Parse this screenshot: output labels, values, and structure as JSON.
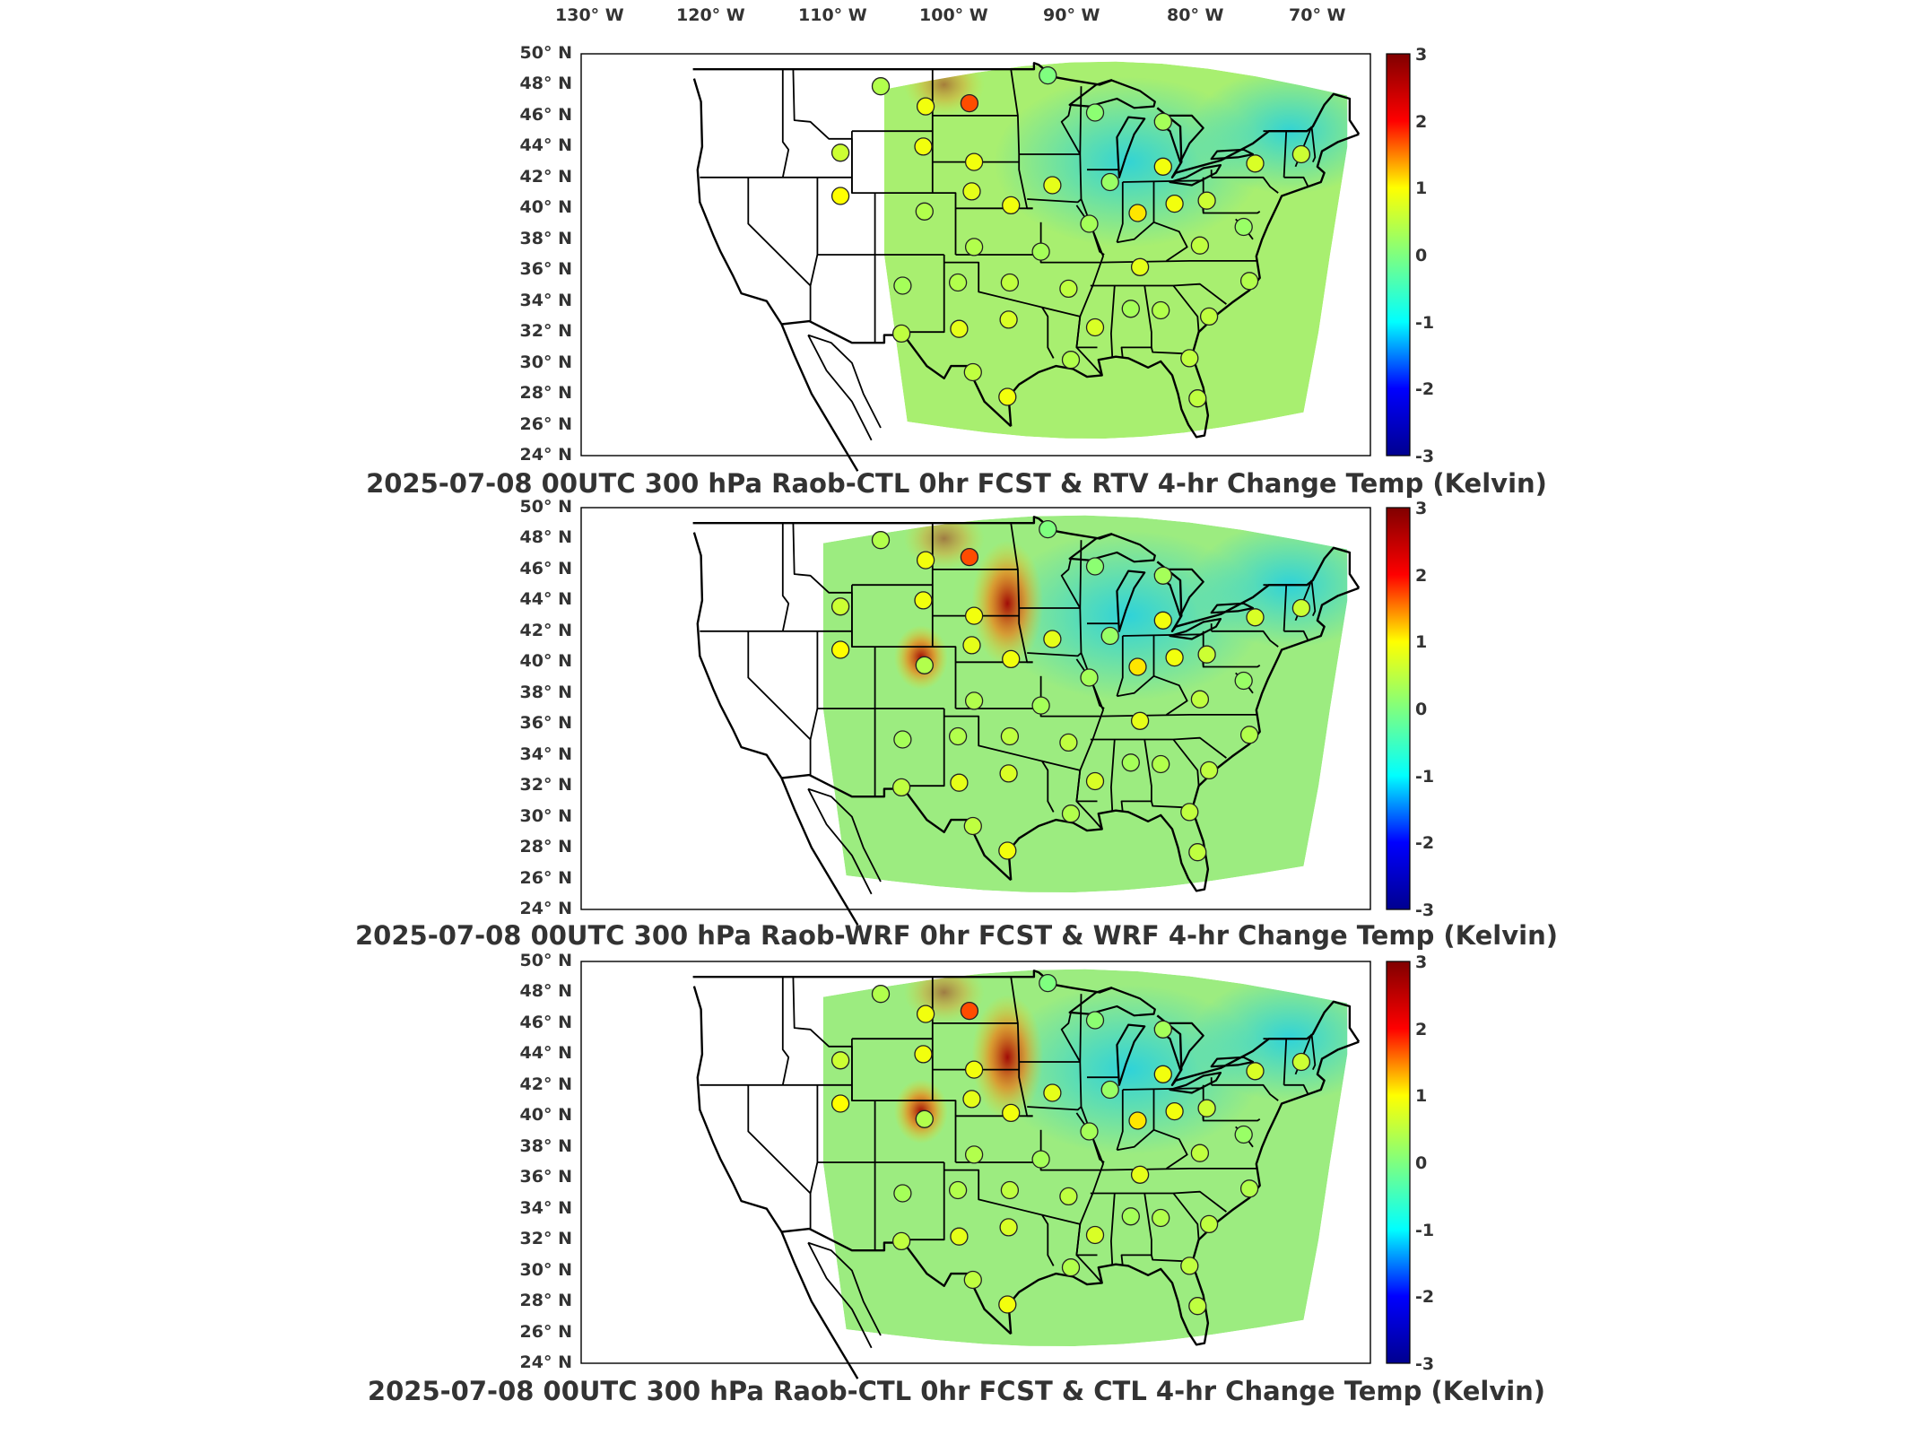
{
  "lon_labels": [
    "130° W",
    "120° W",
    "110° W",
    "100° W",
    "90° W",
    "80° W",
    "70° W"
  ],
  "lat_labels": [
    "50° N",
    "48° N",
    "46° N",
    "44° N",
    "42° N",
    "40° N",
    "38° N",
    "36° N",
    "34° N",
    "32° N",
    "30° N",
    "28° N",
    "26° N",
    "24° N"
  ],
  "colorbar": {
    "ticks": [
      "3",
      "2",
      "1",
      "0",
      "-1",
      "-2",
      "-3"
    ],
    "colormap": [
      "#00008f",
      "#0000ff",
      "#00ffff",
      "#7fff7f",
      "#ffff00",
      "#ff0000",
      "#800000"
    ],
    "range": [
      -3,
      3
    ]
  },
  "panels": [
    {
      "title": "2025-07-08 00UTC 300 hPa Raob-CTL 0hr FCST & RTV 4-hr Change Temp (Kelvin)",
      "field_color": "#a8ef70",
      "hotspots": []
    },
    {
      "title": "2025-07-08 00UTC 300 hPa Raob-WRF 0hr FCST & WRF 4-hr Change Temp (Kelvin)",
      "field_color": "#9cec80",
      "hotspots": [
        "north-plains",
        "colorado"
      ]
    },
    {
      "title": "2025-07-08 00UTC 300 hPa Raob-CTL 0hr FCST & CTL 4-hr Change Temp (Kelvin)",
      "field_color": "#9cec80",
      "hotspots": [
        "north-plains",
        "colorado"
      ]
    }
  ],
  "stations": [
    {
      "lon": -108.5,
      "lat": 47.9,
      "dT": 0.4
    },
    {
      "lon": -104.6,
      "lat": 46.6,
      "dT": 0.9
    },
    {
      "lon": -100.8,
      "lat": 46.8,
      "dT": 1.7
    },
    {
      "lon": -112.0,
      "lat": 43.6,
      "dT": 0.6
    },
    {
      "lon": -104.8,
      "lat": 44.0,
      "dT": 0.9
    },
    {
      "lon": -100.4,
      "lat": 43.0,
      "dT": 0.9
    },
    {
      "lon": -94.0,
      "lat": 48.6,
      "dT": 0.0
    },
    {
      "lon": -89.9,
      "lat": 46.2,
      "dT": 0.1
    },
    {
      "lon": -84.0,
      "lat": 45.6,
      "dT": 0.3
    },
    {
      "lon": -84.0,
      "lat": 42.7,
      "dT": 0.9
    },
    {
      "lon": -88.6,
      "lat": 41.7,
      "dT": 0.2
    },
    {
      "lon": -93.6,
      "lat": 41.5,
      "dT": 0.8
    },
    {
      "lon": -97.2,
      "lat": 40.2,
      "dT": 0.9
    },
    {
      "lon": -100.6,
      "lat": 41.1,
      "dT": 0.8
    },
    {
      "lon": -104.7,
      "lat": 39.8,
      "dT": 0.4
    },
    {
      "lon": -112.0,
      "lat": 40.8,
      "dT": 1.0
    },
    {
      "lon": -100.4,
      "lat": 37.5,
      "dT": 0.4
    },
    {
      "lon": -94.6,
      "lat": 37.2,
      "dT": 0.3
    },
    {
      "lon": -90.4,
      "lat": 39.0,
      "dT": 0.3
    },
    {
      "lon": -86.2,
      "lat": 39.7,
      "dT": 1.1
    },
    {
      "lon": -83.0,
      "lat": 40.3,
      "dT": 0.9
    },
    {
      "lon": -80.2,
      "lat": 40.5,
      "dT": 0.6
    },
    {
      "lon": -76.0,
      "lat": 42.9,
      "dT": 0.7
    },
    {
      "lon": -72.0,
      "lat": 43.5,
      "dT": 0.6
    },
    {
      "lon": -77.0,
      "lat": 38.8,
      "dT": 0.2
    },
    {
      "lon": -80.8,
      "lat": 37.6,
      "dT": 0.5
    },
    {
      "lon": -76.5,
      "lat": 35.3,
      "dT": 0.4
    },
    {
      "lon": -80.0,
      "lat": 33.0,
      "dT": 0.5
    },
    {
      "lon": -86.0,
      "lat": 36.2,
      "dT": 0.8
    },
    {
      "lon": -84.2,
      "lat": 33.4,
      "dT": 0.4
    },
    {
      "lon": -86.8,
      "lat": 33.5,
      "dT": 0.3
    },
    {
      "lon": -89.9,
      "lat": 32.3,
      "dT": 0.7
    },
    {
      "lon": -92.2,
      "lat": 34.8,
      "dT": 0.5
    },
    {
      "lon": -97.3,
      "lat": 35.2,
      "dT": 0.5
    },
    {
      "lon": -97.4,
      "lat": 32.8,
      "dT": 0.7
    },
    {
      "lon": -101.7,
      "lat": 32.2,
      "dT": 0.8
    },
    {
      "lon": -101.8,
      "lat": 35.2,
      "dT": 0.4
    },
    {
      "lon": -106.6,
      "lat": 35.0,
      "dT": 0.3
    },
    {
      "lon": -106.7,
      "lat": 31.9,
      "dT": 0.5
    },
    {
      "lon": -100.5,
      "lat": 29.4,
      "dT": 0.5
    },
    {
      "lon": -97.5,
      "lat": 27.8,
      "dT": 0.9
    },
    {
      "lon": -92.0,
      "lat": 30.2,
      "dT": 0.4
    },
    {
      "lon": -81.7,
      "lat": 30.3,
      "dT": 0.5
    },
    {
      "lon": -81.0,
      "lat": 27.7,
      "dT": 0.5
    }
  ]
}
